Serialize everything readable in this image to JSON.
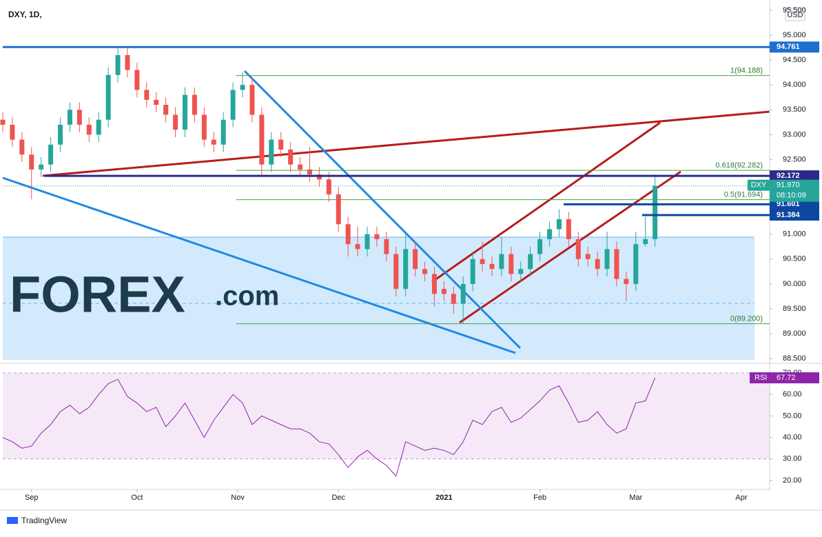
{
  "header": {
    "symbol": "DXY, 1D,",
    "currency": "USD"
  },
  "logo": {
    "brand": "FOREX",
    "suffix": ".com"
  },
  "footer": "TradingView",
  "chart_data": [
    {
      "type": "candlestick",
      "name": "DXY",
      "x": [
        0,
        2,
        4,
        6,
        8,
        10,
        12,
        14,
        16,
        18,
        20,
        22,
        24,
        26,
        28,
        30,
        32,
        34,
        36,
        38,
        40,
        42,
        44,
        46,
        48,
        50,
        52,
        54,
        56,
        58,
        60,
        62,
        64,
        66,
        68,
        70,
        72,
        74,
        76,
        78,
        80,
        82,
        84,
        86,
        88,
        90,
        92,
        94,
        96,
        98,
        100,
        102,
        104,
        106,
        108,
        110,
        112,
        114,
        116,
        118,
        120,
        122,
        124,
        126,
        128,
        130,
        132,
        134,
        136
      ],
      "open": [
        93.3,
        93.2,
        92.9,
        92.6,
        92.3,
        92.4,
        92.8,
        93.2,
        93.5,
        93.2,
        93.0,
        93.3,
        94.2,
        94.6,
        94.3,
        93.9,
        93.7,
        93.6,
        93.4,
        93.1,
        93.8,
        93.4,
        92.9,
        92.8,
        93.3,
        93.9,
        94.0,
        93.4,
        92.4,
        92.9,
        92.7,
        92.4,
        92.3,
        92.2,
        92.1,
        91.8,
        91.2,
        90.8,
        90.7,
        91.0,
        90.9,
        90.6,
        89.9,
        90.7,
        90.3,
        90.2,
        89.9,
        89.8,
        89.6,
        90.0,
        90.5,
        90.4,
        90.3,
        90.6,
        90.2,
        90.3,
        90.6,
        90.9,
        91.1,
        91.3,
        90.9,
        90.6,
        90.5,
        90.3,
        90.7,
        90.1,
        90.0,
        90.8,
        90.9
      ],
      "high": [
        93.45,
        93.35,
        93.05,
        92.75,
        92.55,
        92.95,
        93.35,
        93.65,
        93.65,
        93.35,
        93.45,
        94.35,
        94.75,
        94.75,
        94.45,
        94.05,
        93.85,
        93.75,
        93.55,
        93.95,
        93.95,
        93.55,
        93.05,
        93.45,
        94.05,
        94.25,
        94.15,
        93.55,
        93.05,
        93.05,
        92.85,
        92.55,
        92.75,
        92.35,
        92.25,
        91.95,
        91.35,
        91.15,
        91.15,
        91.15,
        91.05,
        90.75,
        91.05,
        90.85,
        90.45,
        90.35,
        90.05,
        89.95,
        90.15,
        90.65,
        90.85,
        90.55,
        90.95,
        90.75,
        90.45,
        90.75,
        91.05,
        91.25,
        91.5,
        91.45,
        91.05,
        90.75,
        90.65,
        91.05,
        90.85,
        90.25,
        91.05,
        91.35,
        92.2
      ],
      "low": [
        93.05,
        92.75,
        92.45,
        91.7,
        92.15,
        92.25,
        92.65,
        93.05,
        93.05,
        92.85,
        92.85,
        93.15,
        94.05,
        94.15,
        93.75,
        93.55,
        93.45,
        93.25,
        92.95,
        92.95,
        93.25,
        92.75,
        92.65,
        92.65,
        93.15,
        93.75,
        93.25,
        92.15,
        92.25,
        92.55,
        92.25,
        92.15,
        92.05,
        91.95,
        91.65,
        91.05,
        90.55,
        90.55,
        90.55,
        90.75,
        90.45,
        89.75,
        89.75,
        90.15,
        90.05,
        89.55,
        89.65,
        89.4,
        89.2,
        89.85,
        90.25,
        90.15,
        90.15,
        90.05,
        90.05,
        90.15,
        90.45,
        90.75,
        90.95,
        90.75,
        90.35,
        90.35,
        90.15,
        90.15,
        89.95,
        89.65,
        89.85,
        90.75,
        90.75
      ],
      "close": [
        93.2,
        92.9,
        92.6,
        92.3,
        92.4,
        92.8,
        93.2,
        93.5,
        93.2,
        93.0,
        93.3,
        94.2,
        94.6,
        94.3,
        93.9,
        93.7,
        93.6,
        93.4,
        93.1,
        93.8,
        93.4,
        92.9,
        92.8,
        93.3,
        93.9,
        94.0,
        93.4,
        92.4,
        92.9,
        92.7,
        92.4,
        92.3,
        92.2,
        92.1,
        91.8,
        91.2,
        90.8,
        90.7,
        91.0,
        90.9,
        90.6,
        89.9,
        90.7,
        90.3,
        90.2,
        89.8,
        89.8,
        89.6,
        90.0,
        90.5,
        90.4,
        90.3,
        90.6,
        90.2,
        90.3,
        90.6,
        90.9,
        91.1,
        91.3,
        90.9,
        90.5,
        90.5,
        90.3,
        90.7,
        90.1,
        90.0,
        90.8,
        90.9,
        91.97
      ],
      "up_color": "#26a69a",
      "down_color": "#ef5350",
      "xlim": [
        0,
        159.9
      ],
      "xticks": [
        {
          "value": 6,
          "label": "Sep"
        },
        {
          "value": 28,
          "label": "Oct"
        },
        {
          "value": 49,
          "label": "Nov"
        },
        {
          "value": 70,
          "label": "Dec"
        },
        {
          "value": 92,
          "label": "2021"
        },
        {
          "value": 112,
          "label": "Feb"
        },
        {
          "value": 132,
          "label": "Mar"
        },
        {
          "value": 154,
          "label": "Apr"
        }
      ],
      "ylim": [
        88.474,
        95.596
      ],
      "yticks": [
        {
          "value": 95.5,
          "label": "95.500"
        },
        {
          "value": 95,
          "label": "95.000"
        },
        {
          "value": 94.5,
          "label": "94.500"
        },
        {
          "value": 94,
          "label": "94.000"
        },
        {
          "value": 93.5,
          "label": "93.500"
        },
        {
          "value": 93,
          "label": "93.000"
        },
        {
          "value": 92.5,
          "label": "92.500"
        },
        {
          "value": 92,
          "label": "92.000"
        },
        {
          "value": 91.5,
          "label": "91.500"
        },
        {
          "value": 91,
          "label": "91.000"
        },
        {
          "value": 90.5,
          "label": "90.500"
        },
        {
          "value": 90,
          "label": "90.000"
        },
        {
          "value": 89.5,
          "label": "89.500"
        },
        {
          "value": 89,
          "label": "89.000"
        },
        {
          "value": 88.5,
          "label": "88.500"
        }
      ],
      "levels": [
        {
          "value": 94.761,
          "color": "#1e6fd0"
        },
        {
          "value": 92.172,
          "color": "#2b2a8a"
        },
        {
          "value": 91.601,
          "color": "#0d47a1"
        },
        {
          "value": 91.384,
          "color": "#0d47a1"
        }
      ],
      "fib": [
        {
          "value": 94.188,
          "label": "1(94.188)"
        },
        {
          "value": 92.282,
          "label": "0.618(92.282)"
        },
        {
          "value": 91.694,
          "label": "0.5(91.694)"
        },
        {
          "value": 89.2,
          "label": "0(89.200)"
        }
      ],
      "last": {
        "value": 91.97,
        "label": "91.970",
        "countdown": "08:10:09",
        "color": "#26a69a"
      }
    },
    {
      "type": "line",
      "name": "RSI",
      "color": "#8e24aa",
      "values": [
        40,
        38,
        35,
        36,
        42,
        46,
        52,
        55,
        51,
        54,
        60,
        65,
        67,
        59,
        56,
        52,
        54,
        45,
        50,
        56,
        48,
        40,
        48,
        54,
        60,
        56,
        46,
        50,
        48,
        46,
        44,
        44,
        42,
        38,
        37,
        32,
        26,
        31,
        34,
        30,
        27,
        22,
        38,
        36,
        34,
        35,
        34,
        32,
        38,
        48,
        46,
        52,
        54,
        47,
        49,
        53,
        57,
        62,
        64,
        56,
        47,
        48,
        52,
        46,
        42,
        44,
        56,
        57,
        67.72
      ],
      "ylim": [
        16.47,
        73.2
      ],
      "yticks": [
        {
          "value": 70,
          "label": "70.00"
        },
        {
          "value": 60,
          "label": "60.00"
        },
        {
          "value": 50,
          "label": "50.00"
        },
        {
          "value": 40,
          "label": "40.00"
        },
        {
          "value": 30,
          "label": "30.00"
        },
        {
          "value": 20,
          "label": "20.00"
        }
      ]
    }
  ]
}
